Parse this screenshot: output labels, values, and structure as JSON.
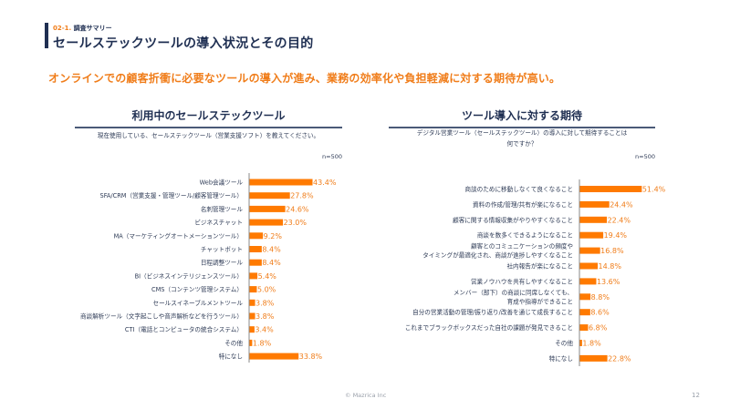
{
  "header": {
    "section_number": "02-1.",
    "section_label": "調査サマリー",
    "title": "セールステックツールの導入状況とその目的"
  },
  "headline": "オンラインでの顧客折衝に必要なツールの導入が進み、業務の効率化や負担軽減に対する期待が高い。",
  "colors": {
    "bar": "#ff7a00",
    "value_text": "#f07d1a",
    "axis": "#888888",
    "navy": "#1f2f52"
  },
  "chart_data": [
    {
      "type": "bar",
      "orientation": "horizontal",
      "title": "利用中のセールステックツール",
      "question": "現在使用している、セールステックツール（営業支援ソフト）を教えてください。",
      "n_label": "n=500",
      "unit": "%",
      "xlim": [
        0,
        100
      ],
      "categories": [
        "Web会議ツール",
        "SFA/CRM（営業支援・管理ツール/顧客管理ツール）",
        "名刺管理ツール",
        "ビジネスチャット",
        "MA（マーケティングオートメーションツール）",
        "チャットボット",
        "日程調整ツール",
        "BI（ビジネスインテリジェンスツール）",
        "CMS（コンテンツ管理システム）",
        "セールスイネーブルメントツール",
        "商談解析ツール（文字起こしや音声解析などを行うツール）",
        "CTI（電話とコンピュータの統合システム）",
        "その他",
        "特になし"
      ],
      "values": [
        43.4,
        27.8,
        24.6,
        23.0,
        9.2,
        8.4,
        8.4,
        5.4,
        5.0,
        3.8,
        3.8,
        3.4,
        1.8,
        33.8
      ],
      "value_labels": [
        "43.4%",
        "27.8%",
        "24.6%",
        "23.0%",
        "9.2%",
        "8.4%",
        "8.4%",
        "5.4%",
        "5.0%",
        "3.8%",
        "3.8%",
        "3.4%",
        "1.8%",
        "33.8%"
      ]
    },
    {
      "type": "bar",
      "orientation": "horizontal",
      "title": "ツール導入に対する期待",
      "question_lines": [
        "デジタル営業ツール（セールステックツール）の導入に対して期待することは",
        "何ですか？"
      ],
      "n_label": "n=500",
      "unit": "%",
      "xlim": [
        0,
        100
      ],
      "categories": [
        [
          "商談のために移動しなくて良くなること"
        ],
        [
          "資料の作成/管理/共有が楽になること"
        ],
        [
          "顧客に関する情報収集がやりやすくなること"
        ],
        [
          "商談を数多くできるようになること"
        ],
        [
          "顧客とのコミュニケーションの頻度や",
          "タイミングが最適化され、商談が進捗しやすくなること"
        ],
        [
          "社内報告が楽になること"
        ],
        [
          "営業ノウハウを共有しやすくなること"
        ],
        [
          "メンバー（部下）の商談に同席しなくても、",
          "育成や指導ができること"
        ],
        [
          "自分の営業活動の管理/振り返り/改善を通じて成長すること"
        ],
        [
          "これまでブラックボックスだった自社の課題が発見できること"
        ],
        [
          "その他"
        ],
        [
          "特になし"
        ]
      ],
      "values": [
        51.4,
        24.4,
        22.4,
        19.4,
        16.8,
        14.8,
        13.6,
        8.8,
        8.6,
        6.8,
        1.8,
        22.8
      ],
      "value_labels": [
        "51.4%",
        "24.4%",
        "22.4%",
        "19.4%",
        "16.8%",
        "14.8%",
        "13.6%",
        "8.8%",
        "8.6%",
        "6.8%",
        "1.8%",
        "22.8%"
      ]
    }
  ],
  "footer": {
    "copyright": "© Mazrica Inc",
    "page_number": "12"
  }
}
